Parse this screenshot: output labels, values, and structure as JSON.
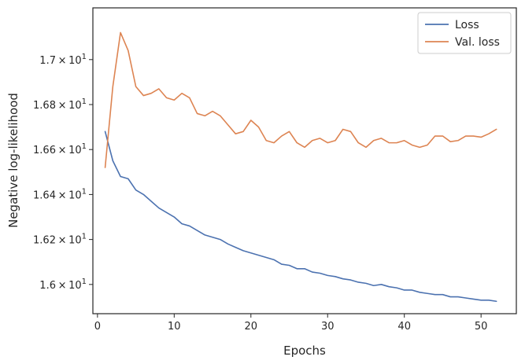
{
  "chart_data": {
    "type": "line",
    "title": "",
    "xlabel": "Epochs",
    "ylabel": "Negative log-likelihood",
    "xlim": [
      -0.6,
      54.6
    ],
    "ylim": [
      15.87,
      17.23
    ],
    "grid": false,
    "legend_position": "top-right",
    "x_ticks": [
      0,
      10,
      20,
      30,
      40,
      50
    ],
    "x_tick_labels": [
      "0",
      "10",
      "20",
      "30",
      "40",
      "50"
    ],
    "y_ticks": [
      16.0,
      16.2,
      16.4,
      16.6,
      16.8,
      17.0
    ],
    "y_tick_labels": [
      {
        "mantissa": "1.6",
        "exponent": "1"
      },
      {
        "mantissa": "1.62",
        "exponent": "1"
      },
      {
        "mantissa": "1.64",
        "exponent": "1"
      },
      {
        "mantissa": "1.66",
        "exponent": "1"
      },
      {
        "mantissa": "1.68",
        "exponent": "1"
      },
      {
        "mantissa": "1.7",
        "exponent": "1"
      }
    ],
    "x": [
      1,
      2,
      3,
      4,
      5,
      6,
      7,
      8,
      9,
      10,
      11,
      12,
      13,
      14,
      15,
      16,
      17,
      18,
      19,
      20,
      21,
      22,
      23,
      24,
      25,
      26,
      27,
      28,
      29,
      30,
      31,
      32,
      33,
      34,
      35,
      36,
      37,
      38,
      39,
      40,
      41,
      42,
      43,
      44,
      45,
      46,
      47,
      48,
      49,
      50,
      51,
      52
    ],
    "series": [
      {
        "name": "Loss",
        "color": "#4c72b0",
        "values": [
          16.68,
          16.55,
          16.48,
          16.47,
          16.42,
          16.4,
          16.37,
          16.34,
          16.32,
          16.3,
          16.27,
          16.26,
          16.24,
          16.22,
          16.21,
          16.2,
          16.18,
          16.165,
          16.15,
          16.14,
          16.13,
          16.12,
          16.11,
          16.09,
          16.085,
          16.07,
          16.07,
          16.055,
          16.05,
          16.04,
          16.035,
          16.025,
          16.02,
          16.01,
          16.005,
          15.995,
          16.0,
          15.99,
          15.985,
          15.975,
          15.975,
          15.965,
          15.96,
          15.955,
          15.955,
          15.945,
          15.945,
          15.94,
          15.935,
          15.93,
          15.93,
          15.925
        ]
      },
      {
        "name": "Val. loss",
        "color": "#dd8452",
        "values": [
          16.52,
          16.88,
          17.12,
          17.04,
          16.88,
          16.84,
          16.85,
          16.87,
          16.83,
          16.82,
          16.85,
          16.83,
          16.76,
          16.75,
          16.77,
          16.75,
          16.71,
          16.67,
          16.68,
          16.73,
          16.7,
          16.64,
          16.63,
          16.66,
          16.68,
          16.63,
          16.61,
          16.64,
          16.65,
          16.63,
          16.64,
          16.69,
          16.68,
          16.63,
          16.61,
          16.64,
          16.65,
          16.63,
          16.63,
          16.64,
          16.62,
          16.61,
          16.62,
          16.66,
          16.66,
          16.635,
          16.64,
          16.66,
          16.66,
          16.655,
          16.67,
          16.69
        ]
      }
    ]
  }
}
